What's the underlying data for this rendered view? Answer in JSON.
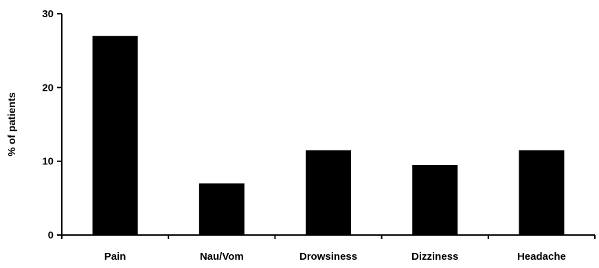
{
  "chart_data": {
    "type": "bar",
    "categories": [
      "Pain",
      "Nau/Vom",
      "Drowsiness",
      "Dizziness",
      "Headache"
    ],
    "values": [
      27,
      7,
      11.5,
      9.5,
      11.5
    ],
    "title": "",
    "xlabel": "",
    "ylabel": "% of patients",
    "ylim": [
      0,
      30
    ],
    "yticks": [
      0,
      10,
      20,
      30
    ],
    "ytick_labels": [
      "0",
      "10",
      "20",
      "30"
    ],
    "grid": false,
    "legend": "none",
    "colors": {
      "bar": "#000000",
      "axis": "#000000",
      "background": "#ffffff"
    }
  }
}
